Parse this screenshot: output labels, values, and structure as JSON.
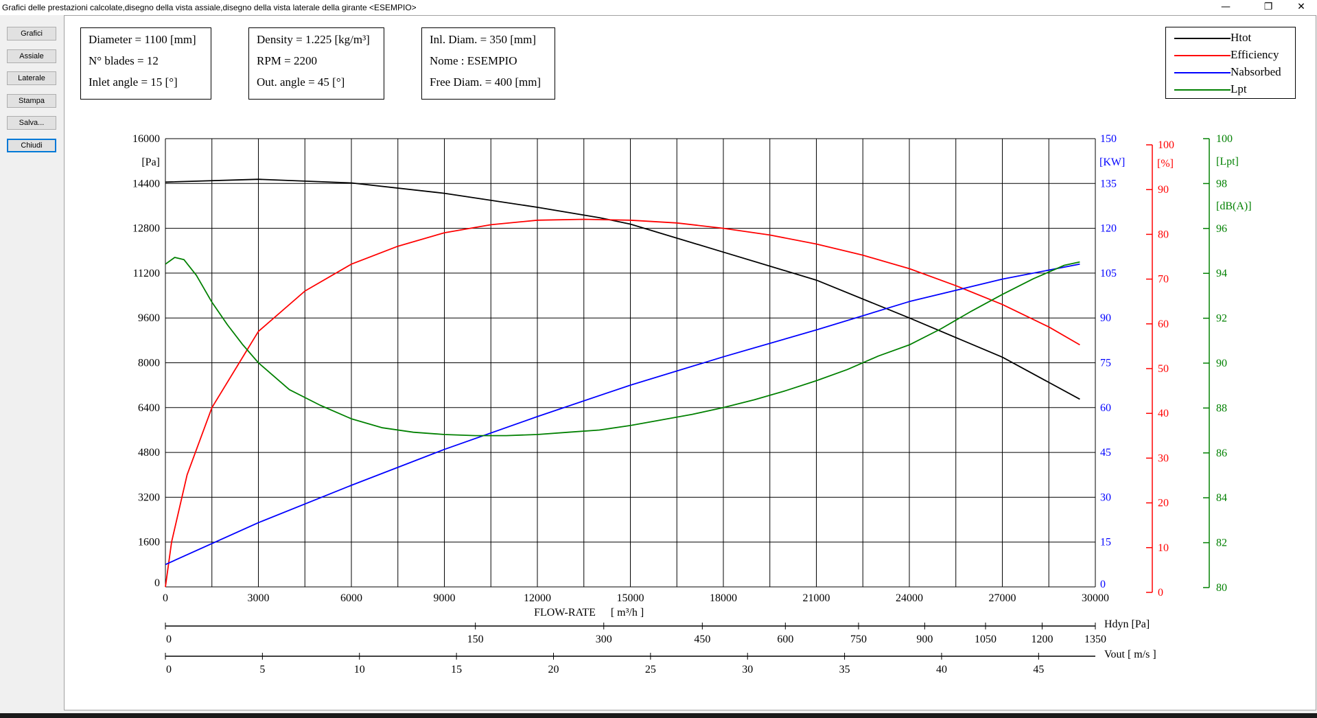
{
  "window": {
    "title": "Grafici delle prestazioni calcolate,disegno della vista assiale,disegno della vista laterale della girante <ESEMPIO>",
    "buttons": {
      "minimize": "—",
      "restore": "❐",
      "close": "✕"
    }
  },
  "sidebar": {
    "buttons": [
      {
        "label": "Grafici"
      },
      {
        "label": "Assiale"
      },
      {
        "label": "Laterale"
      },
      {
        "label": "Stampa"
      },
      {
        "label": "Salva..."
      },
      {
        "label": "Chiudi"
      }
    ]
  },
  "info": {
    "box1": [
      "Diameter = 1100 [mm]",
      "N° blades = 12",
      "Inlet angle = 15 [°]"
    ],
    "box2": [
      "Density = 1.225 [kg/m³]",
      "RPM = 2200",
      "Out. angle = 45 [°]"
    ],
    "box3": [
      "Inl. Diam. = 350 [mm]",
      "Nome : ESEMPIO",
      "Free Diam. = 400 [mm]"
    ]
  },
  "legend": [
    {
      "label": "Htot",
      "color": "#000000"
    },
    {
      "label": "Efficiency",
      "color": "#ff0000"
    },
    {
      "label": "Nabsorbed",
      "color": "#0000ff"
    },
    {
      "label": "Lpt",
      "color": "#008000"
    }
  ],
  "chart_data": {
    "type": "line",
    "grid": true,
    "x": {
      "label": "FLOW-RATE",
      "unit": "[ m³/h ]",
      "range": [
        0,
        30000
      ],
      "ticks": [
        "0",
        "3000",
        "6000",
        "9000",
        "12000",
        "15000",
        "18000",
        "21000",
        "24000",
        "27000",
        "30000"
      ]
    },
    "axes": {
      "pressure": {
        "unit": "[Pa]",
        "range": [
          0,
          16000
        ],
        "color": "#000000",
        "ticks": [
          "0",
          "1600",
          "3200",
          "4800",
          "6400",
          "8000",
          "9600",
          "11200",
          "12800",
          "14400",
          "16000"
        ]
      },
      "power": {
        "unit": "[KW]",
        "range": [
          0,
          150
        ],
        "color": "#0000ff",
        "ticks": [
          "0",
          "15",
          "30",
          "45",
          "60",
          "75",
          "90",
          "105",
          "120",
          "135",
          "150"
        ]
      },
      "efficiency": {
        "unit": "[%]",
        "range": [
          0,
          100
        ],
        "color": "#ff0000",
        "ticks": [
          "0",
          "10",
          "20",
          "30",
          "40",
          "50",
          "60",
          "70",
          "80",
          "90",
          "100"
        ]
      },
      "noise": {
        "unit": "[Lpt]",
        "unit2": "[dB(A)]",
        "range": [
          80,
          100
        ],
        "color": "#008000",
        "ticks": [
          "80",
          "82",
          "84",
          "86",
          "88",
          "90",
          "92",
          "94",
          "96",
          "98",
          "100"
        ]
      }
    },
    "series": [
      {
        "name": "Htot",
        "axis": "pressure",
        "color": "#000000",
        "x": [
          0,
          3000,
          6000,
          9000,
          12000,
          14000,
          15000,
          18000,
          21000,
          24000,
          27000,
          29500
        ],
        "y": [
          14450,
          14550,
          14420,
          14050,
          13550,
          13180,
          12950,
          11950,
          10950,
          9600,
          8200,
          6700
        ]
      },
      {
        "name": "Efficiency",
        "axis": "efficiency",
        "color": "#ff0000",
        "x": [
          0,
          200,
          700,
          1500,
          3000,
          4500,
          6000,
          7500,
          9000,
          10500,
          12000,
          13500,
          15000,
          16500,
          18000,
          19500,
          21000,
          22500,
          24000,
          25500,
          27000,
          28500,
          29500
        ],
        "y": [
          0,
          10,
          25,
          40,
          57,
          66,
          72,
          76,
          79,
          80.8,
          81.8,
          82,
          81.8,
          81.2,
          80,
          78.5,
          76.5,
          74,
          71,
          67.2,
          63,
          58,
          54
        ]
      },
      {
        "name": "Nabsorbed",
        "axis": "power",
        "color": "#0000ff",
        "x": [
          0,
          3000,
          6000,
          9000,
          12000,
          15000,
          18000,
          21000,
          24000,
          27000,
          29500
        ],
        "y": [
          7.5,
          21.5,
          34,
          46,
          57,
          67.5,
          77,
          86,
          95.5,
          103,
          108
        ]
      },
      {
        "name": "Lpt",
        "axis": "noise",
        "color": "#008000",
        "x": [
          0,
          300,
          600,
          1000,
          1500,
          2000,
          2500,
          3000,
          4000,
          5000,
          6000,
          7000,
          8000,
          9000,
          10000,
          11000,
          12000,
          13000,
          14000,
          15000,
          16000,
          17000,
          18000,
          19000,
          20000,
          21000,
          22000,
          23000,
          24000,
          25000,
          26000,
          27000,
          28000,
          29000,
          29500
        ],
        "y": [
          94.4,
          94.7,
          94.6,
          93.9,
          92.7,
          91.7,
          90.8,
          90,
          88.8,
          88.1,
          87.5,
          87.1,
          86.9,
          86.8,
          86.75,
          86.75,
          86.8,
          86.9,
          87,
          87.2,
          87.45,
          87.7,
          88,
          88.35,
          88.75,
          89.2,
          89.7,
          90.3,
          90.8,
          91.5,
          92.3,
          93.05,
          93.75,
          94.35,
          94.5
        ]
      }
    ],
    "secondary_axes": [
      {
        "label": "Hdyn [Pa]",
        "ticks": [
          {
            "label": "0",
            "flow": 0
          },
          {
            "label": "150",
            "flow": 10000
          },
          {
            "label": "300",
            "flow": 14142
          },
          {
            "label": "450",
            "flow": 17321
          },
          {
            "label": "600",
            "flow": 20000
          },
          {
            "label": "750",
            "flow": 22361
          },
          {
            "label": "900",
            "flow": 24495
          },
          {
            "label": "1050",
            "flow": 26458
          },
          {
            "label": "1200",
            "flow": 28284
          },
          {
            "label": "1350",
            "flow": 30000
          }
        ]
      },
      {
        "label": "Vout [ m/s ]",
        "ticks": [
          {
            "label": "0",
            "flow": 0
          },
          {
            "label": "5",
            "flow": 3130
          },
          {
            "label": "10",
            "flow": 6260
          },
          {
            "label": "15",
            "flow": 9390
          },
          {
            "label": "20",
            "flow": 12520
          },
          {
            "label": "25",
            "flow": 15650
          },
          {
            "label": "30",
            "flow": 18780
          },
          {
            "label": "35",
            "flow": 21910
          },
          {
            "label": "40",
            "flow": 25040
          },
          {
            "label": "45",
            "flow": 28170
          }
        ]
      }
    ]
  }
}
